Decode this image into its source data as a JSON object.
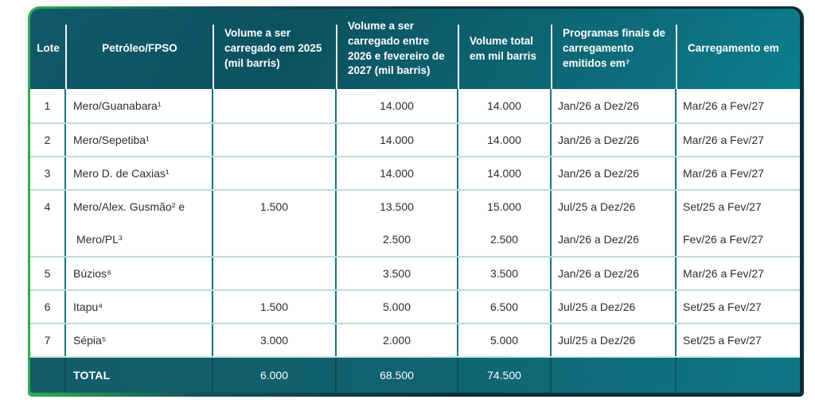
{
  "table": {
    "columns": [
      {
        "label": "Lote"
      },
      {
        "label": "Petróleo/FPSO"
      },
      {
        "label": "Volume a ser carregado em 2025 (mil barris)"
      },
      {
        "label": "Volume a ser carregado entre 2026 e fevereiro de 2027 (mil barris)"
      },
      {
        "label": "Volume total em mil barris"
      },
      {
        "label": "Programas finais de carregamento emitidos em⁷"
      },
      {
        "label": "Carregamento em"
      }
    ],
    "rows": [
      {
        "lote": "1",
        "fpso": "Mero/Guanabara¹",
        "v2025": "",
        "v2026": "14.000",
        "vtotal": "14.000",
        "prog": "Jan/26 a Dez/26",
        "carreg": "Mar/26 a Fev/27"
      },
      {
        "lote": "2",
        "fpso": "Mero/Sepetiba¹",
        "v2025": "",
        "v2026": "14.000",
        "vtotal": "14.000",
        "prog": "Jan/26 a Dez/26",
        "carreg": "Mar/26 a Fev/27"
      },
      {
        "lote": "3",
        "fpso": "Mero D. de Caxias¹",
        "v2025": "",
        "v2026": "14.000",
        "vtotal": "14.000",
        "prog": "Jan/26 a Dez/26",
        "carreg": "Mar/26 a Fev/27"
      },
      {
        "lote": "4",
        "fpso": "Mero/Alex. Gusmão² e",
        "v2025": "1.500",
        "v2026": "13.500",
        "vtotal": "15.000",
        "prog": "Jul/25 a Dez/26",
        "carreg": "Set/25 a Fev/27"
      },
      {
        "lote": "",
        "fpso": "Mero/PL³",
        "v2025": "",
        "v2026": "2.500",
        "vtotal": "2.500",
        "prog": "Jan/26 a Dez/26",
        "carreg": "Fev/26 a Fev/27"
      },
      {
        "lote": "5",
        "fpso": "Búzios⁸",
        "v2025": "",
        "v2026": "3.500",
        "vtotal": "3.500",
        "prog": "Jan/26 a Dez/26",
        "carreg": "Mar/26 a Fev/27"
      },
      {
        "lote": "6",
        "fpso": "Itapu⁴",
        "v2025": "1.500",
        "v2026": "5.000",
        "vtotal": "6.500",
        "prog": "Jul/25 a Dez/26",
        "carreg": "Set/25 a Fev/27"
      },
      {
        "lote": "7",
        "fpso": "Sépia⁵",
        "v2025": "3.000",
        "v2026": "2.000",
        "vtotal": "5.000",
        "prog": "Jul/25 a Dez/26",
        "carreg": "Set/25 a Fev/27"
      }
    ],
    "total": {
      "label": "TOTAL",
      "v2025": "6.000",
      "v2026": "68.500",
      "vtotal": "74.500"
    }
  },
  "colors": {
    "accent_green": "#2fae4e",
    "frame_dark": "#0a2d38",
    "header_teal_dark": "#0d5260",
    "header_teal_light": "#0c7e8c",
    "total_row_teal": "#11616e",
    "body_vertical_border": "#1b7280",
    "row_separator": "#bcdbda",
    "body_text": "#2d2d2d",
    "header_text": "#ffffff"
  }
}
